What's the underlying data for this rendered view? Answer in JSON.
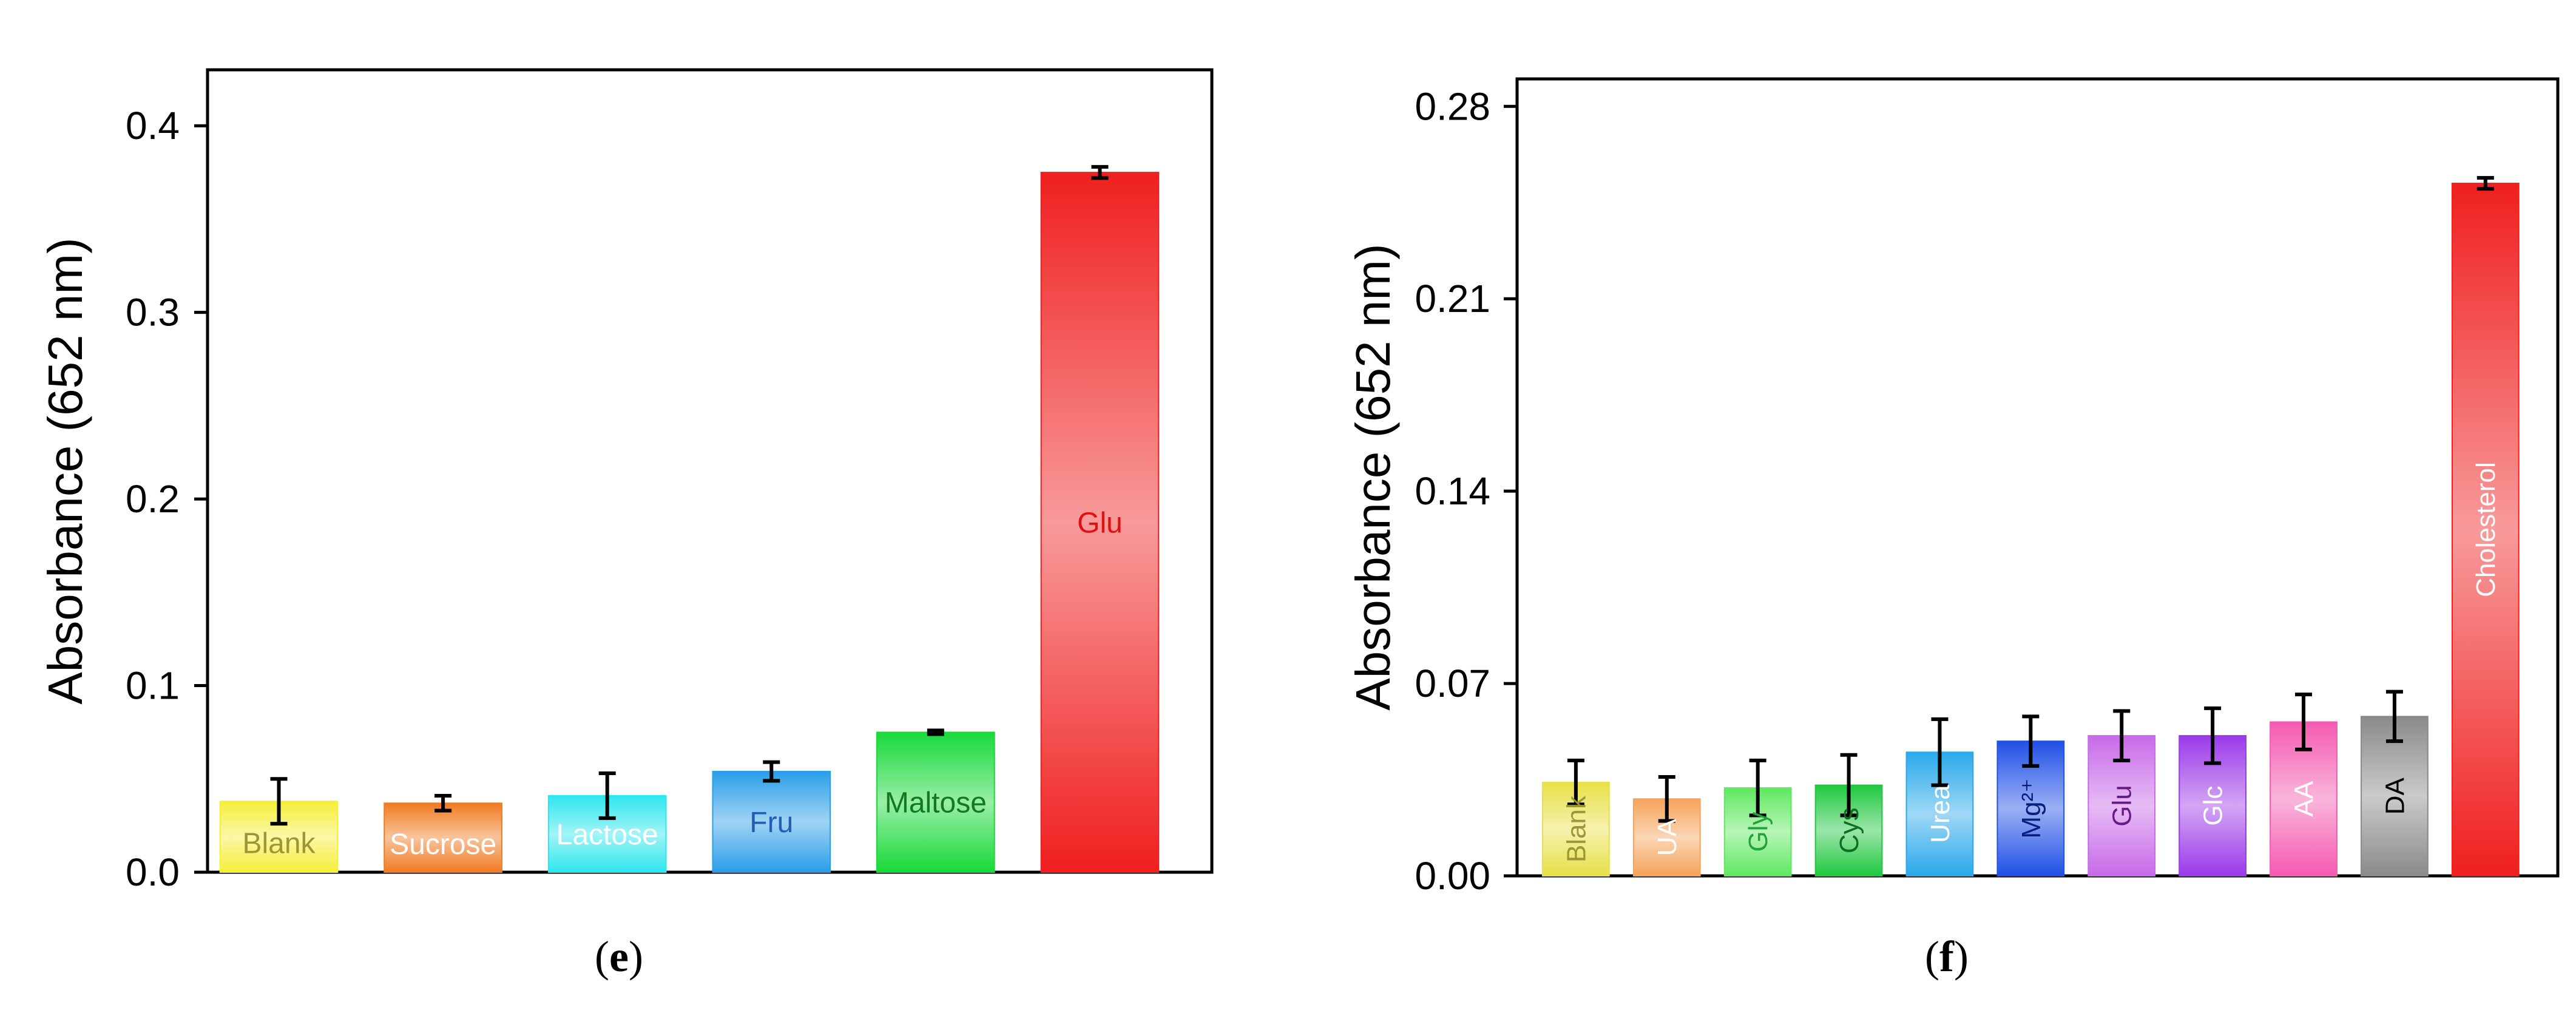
{
  "chart_data": [
    {
      "type": "bar",
      "panel": "e",
      "ylabel": "Absorbance (652 nm)",
      "xlabel": "",
      "ylim": [
        0,
        0.43
      ],
      "yticks": [
        0.0,
        0.1,
        0.2,
        0.3,
        0.4
      ],
      "ytick_labels": [
        "0.0",
        "0.1",
        "0.2",
        "0.3",
        "0.4"
      ],
      "grid": false,
      "bars": [
        {
          "label": "Blank",
          "value": 0.038,
          "error": 0.012,
          "color": "#f6ee3a",
          "label_color": "#9c9635"
        },
        {
          "label": "Sucrose",
          "value": 0.037,
          "error": 0.004,
          "color": "#f07b22",
          "label_color": "#ffffff"
        },
        {
          "label": "Lactose",
          "value": 0.041,
          "error": 0.012,
          "color": "#2ee6ee",
          "label_color": "#ffffff"
        },
        {
          "label": "Fru",
          "value": 0.054,
          "error": 0.005,
          "color": "#2a9ee8",
          "label_color": "#1f5fb4"
        },
        {
          "label": "Maltose",
          "value": 0.075,
          "error": 0.001,
          "color": "#19d93a",
          "label_color": "#0f7a20"
        },
        {
          "label": "Glu",
          "value": 0.375,
          "error": 0.003,
          "color": "#f01f1f",
          "label_color": "#e01010"
        }
      ]
    },
    {
      "type": "bar",
      "panel": "f",
      "ylabel": "Absorbance (652 nm)",
      "xlabel": "",
      "ylim": [
        0,
        0.29
      ],
      "yticks": [
        0.0,
        0.07,
        0.14,
        0.21,
        0.28
      ],
      "ytick_labels": [
        "0.00",
        "0.07",
        "0.14",
        "0.21",
        "0.28"
      ],
      "grid": false,
      "bars": [
        {
          "label": "Blank",
          "value": 0.034,
          "error": 0.008,
          "color": "#e8e048",
          "label_color": "#9c9635"
        },
        {
          "label": "UA",
          "value": 0.028,
          "error": 0.008,
          "color": "#f5a35a",
          "label_color": "#ffffff"
        },
        {
          "label": "Gly",
          "value": 0.032,
          "error": 0.01,
          "color": "#5fe860",
          "label_color": "#22a33a"
        },
        {
          "label": "Cys",
          "value": 0.033,
          "error": 0.011,
          "color": "#20c840",
          "label_color": "#0f6e22"
        },
        {
          "label": "Urea",
          "value": 0.045,
          "error": 0.012,
          "color": "#2aa8ea",
          "label_color": "#ffffff"
        },
        {
          "label": "Mg²⁺",
          "value": 0.049,
          "error": 0.009,
          "color": "#2050e6",
          "label_color": "#0a1e80"
        },
        {
          "label": "Glu",
          "value": 0.051,
          "error": 0.009,
          "color": "#c86ae8",
          "label_color": "#6a1a88"
        },
        {
          "label": "Glc",
          "value": 0.051,
          "error": 0.01,
          "color": "#9a3ae8",
          "label_color": "#ffffff"
        },
        {
          "label": "AA",
          "value": 0.056,
          "error": 0.01,
          "color": "#f45ab0",
          "label_color": "#ffffff"
        },
        {
          "label": "DA",
          "value": 0.058,
          "error": 0.009,
          "color": "#8a8a8a",
          "label_color": "#000000"
        },
        {
          "label": "Cholesterol",
          "value": 0.252,
          "error": 0.002,
          "color": "#f01f1f",
          "label_color": "#ffffff"
        }
      ]
    }
  ],
  "captions": [
    {
      "open": "(",
      "letter": "e",
      "close": ")"
    },
    {
      "open": "(",
      "letter": "f",
      "close": ")"
    }
  ]
}
